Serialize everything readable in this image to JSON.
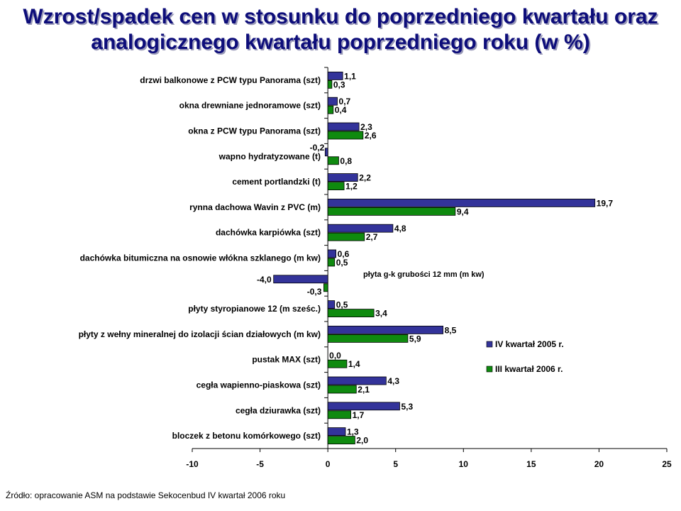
{
  "title": {
    "line1": "Wzrost/spadek cen w stosunku do poprzedniego kwartału oraz",
    "line2": "analogicznego kwartału poprzedniego roku (w %)"
  },
  "source": "Źródło: opracowanie ASM  na podstawie Sekocenbud IV kwartał 2006 roku",
  "colors": {
    "series1": "#33339a",
    "series2": "#0f8a0f"
  },
  "chart_data": {
    "type": "bar",
    "orientation": "horizontal",
    "categories": [
      "drzwi balkonowe z PCW typu Panorama (szt)",
      "okna drewniane jednoramowe (szt)",
      "okna z PCW typu Panorama (szt)",
      "wapno hydratyzowane (t)",
      "cement portlandzki (t)",
      "rynna dachowa Wavin z PVC (m)",
      "dachówka karpiówka (szt)",
      "dachówka bitumiczna na osnowie włókna szklanego (m kw)",
      "",
      "płyty styropianowe 12 (m sześc.)",
      "płyty z wełny mineralnej do izolacji ścian działowych (m kw)",
      "pustak MAX (szt)",
      "cegła wapienno-piaskowa (szt)",
      "cegła dziurawka (szt)",
      "bloczek z betonu komórkowego (szt)"
    ],
    "series": [
      {
        "name": "IV kwartał 2005 r.",
        "values": [
          1.1,
          0.7,
          2.3,
          -0.2,
          2.2,
          19.7,
          4.8,
          0.6,
          -4.0,
          0.5,
          8.5,
          0.0,
          4.3,
          5.3,
          1.3
        ],
        "labels": [
          "1,1",
          "0,7",
          "2,3",
          "-0,2",
          "2,2",
          "19,7",
          "4,8",
          "0,6",
          "-4,0",
          "0,5",
          "8,5",
          "0,0",
          "4,3",
          "5,3",
          "1,3"
        ]
      },
      {
        "name": "III kwartał 2006 r.",
        "values": [
          0.3,
          0.4,
          2.6,
          0.8,
          1.2,
          9.4,
          2.7,
          0.5,
          -0.3,
          3.4,
          5.9,
          1.4,
          2.1,
          1.7,
          2.0
        ],
        "labels": [
          "0,3",
          "0,4",
          "2,6",
          "0,8",
          "1,2",
          "9,4",
          "2,7",
          "0,5",
          "-0,3",
          "3,4",
          "5,9",
          "1,4",
          "2,1",
          "1,7",
          "2,0"
        ]
      }
    ],
    "annotation": "płyta g-k grubości 12 mm (m kw)",
    "xlim": [
      -10,
      25
    ],
    "xticks": [
      -10,
      -5,
      0,
      5,
      10,
      15,
      20,
      25
    ],
    "grid": false,
    "legend_position": "right"
  }
}
